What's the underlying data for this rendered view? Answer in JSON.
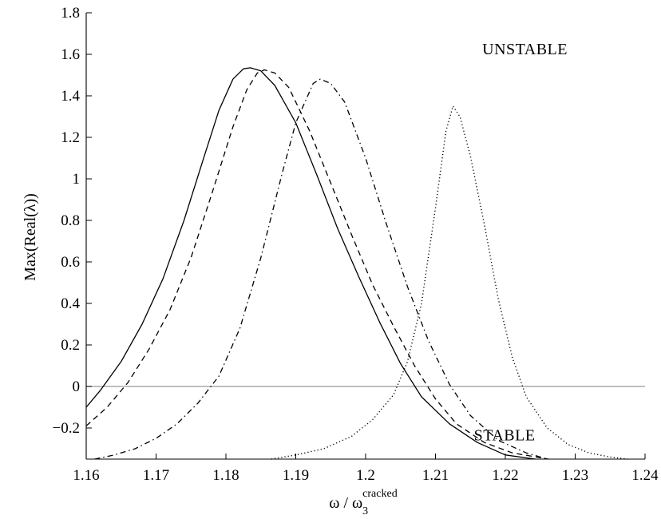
{
  "chart_data": {
    "type": "line",
    "title": "",
    "xlabel": {
      "main": "ω  / ω",
      "sub": "3",
      "sup": "cracked"
    },
    "ylabel": "Max(Real(λ))",
    "xlim": [
      1.16,
      1.24
    ],
    "ylim": [
      -0.35,
      1.8
    ],
    "x_ticks": [
      1.16,
      1.17,
      1.18,
      1.19,
      1.2,
      1.21,
      1.22,
      1.23,
      1.24
    ],
    "x_tick_labels": [
      "1.16",
      "1.17",
      "1.18",
      "1.19",
      "1.2",
      "1.21",
      "1.22",
      "1.23",
      "1.24"
    ],
    "y_ticks": [
      -0.2,
      0,
      0.2,
      0.4,
      0.6,
      0.8,
      1,
      1.2,
      1.4,
      1.6,
      1.8
    ],
    "y_tick_labels": [
      "−0.2",
      "0",
      "0.2",
      "0.4",
      "0.6",
      "0.8",
      "1",
      "1.2",
      "1.4",
      "1.6",
      "1.8"
    ],
    "grid": false,
    "reference_line": {
      "y": 0,
      "color": "#999999"
    },
    "annotations": [
      {
        "text": "UNSTABLE",
        "x": 1.2167,
        "y": 1.6
      },
      {
        "text": "STABLE",
        "x": 1.2155,
        "y": -0.26
      }
    ],
    "series": [
      {
        "style": "solid",
        "color": "#000000",
        "x": [
          1.16,
          1.162,
          1.165,
          1.168,
          1.171,
          1.174,
          1.177,
          1.179,
          1.181,
          1.1825,
          1.1835,
          1.185,
          1.187,
          1.19,
          1.193,
          1.196,
          1.199,
          1.202,
          1.205,
          1.208,
          1.212,
          1.216,
          1.22,
          1.2243
        ],
        "y": [
          -0.1,
          -0.02,
          0.12,
          0.3,
          0.52,
          0.8,
          1.12,
          1.33,
          1.48,
          1.53,
          1.535,
          1.52,
          1.45,
          1.27,
          1.02,
          0.76,
          0.53,
          0.31,
          0.11,
          -0.05,
          -0.18,
          -0.27,
          -0.33,
          -0.35
        ]
      },
      {
        "style": "dashed",
        "color": "#000000",
        "x": [
          1.16,
          1.163,
          1.166,
          1.169,
          1.172,
          1.175,
          1.178,
          1.181,
          1.183,
          1.1845,
          1.1855,
          1.187,
          1.189,
          1.192,
          1.195,
          1.198,
          1.201,
          1.204,
          1.207,
          1.21,
          1.213,
          1.217,
          1.221,
          1.2262
        ],
        "y": [
          -0.19,
          -0.1,
          0.02,
          0.18,
          0.37,
          0.62,
          0.93,
          1.25,
          1.43,
          1.51,
          1.525,
          1.51,
          1.44,
          1.23,
          0.98,
          0.73,
          0.49,
          0.29,
          0.1,
          -0.06,
          -0.18,
          -0.27,
          -0.32,
          -0.35
        ]
      },
      {
        "style": "dashdot",
        "color": "#000000",
        "x": [
          1.1612,
          1.164,
          1.167,
          1.17,
          1.173,
          1.176,
          1.179,
          1.182,
          1.185,
          1.188,
          1.19,
          1.1925,
          1.1935,
          1.195,
          1.197,
          1.2,
          1.203,
          1.206,
          1.209,
          1.212,
          1.215,
          1.219,
          1.223,
          1.226
        ],
        "y": [
          -0.35,
          -0.33,
          -0.3,
          -0.25,
          -0.18,
          -0.08,
          0.05,
          0.28,
          0.62,
          1.02,
          1.27,
          1.46,
          1.48,
          1.46,
          1.37,
          1.1,
          0.78,
          0.48,
          0.22,
          0.01,
          -0.14,
          -0.26,
          -0.32,
          -0.35
        ]
      },
      {
        "style": "dotted",
        "color": "#000000",
        "x": [
          1.1865,
          1.19,
          1.194,
          1.198,
          1.201,
          1.204,
          1.206,
          1.208,
          1.21,
          1.2115,
          1.2125,
          1.2135,
          1.215,
          1.217,
          1.219,
          1.221,
          1.223,
          1.226,
          1.229,
          1.232,
          1.235,
          1.2375
        ],
        "y": [
          -0.35,
          -0.33,
          -0.3,
          -0.24,
          -0.16,
          -0.04,
          0.12,
          0.4,
          0.86,
          1.23,
          1.35,
          1.3,
          1.11,
          0.78,
          0.42,
          0.14,
          -0.05,
          -0.2,
          -0.28,
          -0.32,
          -0.34,
          -0.35
        ]
      }
    ]
  }
}
